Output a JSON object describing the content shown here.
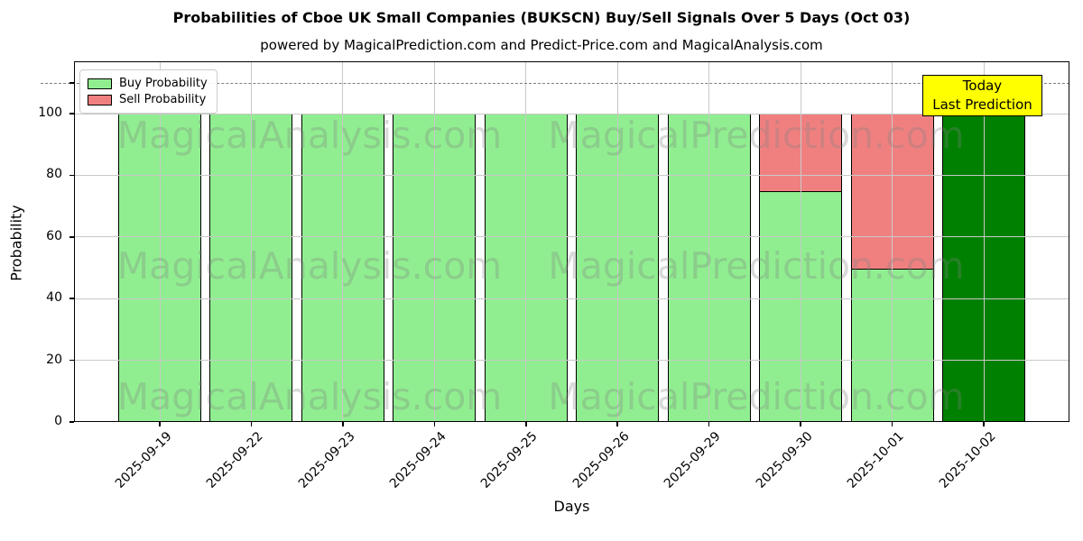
{
  "header": {
    "title": "Probabilities of Cboe UK Small Companies (BUKSCN) Buy/Sell Signals Over 5 Days (Oct 03)",
    "subtitle": "powered by MagicalPrediction.com and Predict-Price.com and MagicalAnalysis.com"
  },
  "legend": {
    "items": [
      {
        "label": "Buy Probability",
        "color": "#90EE90"
      },
      {
        "label": "Sell Probability",
        "color": "#F08080"
      }
    ]
  },
  "annotation": {
    "line1": "Today",
    "line2": "Last Prediction",
    "bg_color": "#FFFF00"
  },
  "watermarks": {
    "left_text": "MagicalAnalysis.com",
    "right_text": "MagicalPrediction.com"
  },
  "axes": {
    "ylabel": "Probability",
    "xlabel": "Days",
    "yticks": [
      0,
      20,
      40,
      60,
      80,
      100
    ]
  },
  "colors": {
    "buy": "#90EE90",
    "sell": "#F08080",
    "today_bar": "#008000",
    "bar_edge": "#000000",
    "grid": "#c9c9c9",
    "dashed_line": "#7f7f7f",
    "annotation_bg": "#FFFF00"
  },
  "chart_data": {
    "type": "bar",
    "stacked": true,
    "title": "Probabilities of Cboe UK Small Companies (BUKSCN) Buy/Sell Signals Over 5 Days (Oct 03)",
    "xlabel": "Days",
    "ylabel": "Probability",
    "categories": [
      "2025-09-19",
      "2025-09-22",
      "2025-09-23",
      "2025-09-24",
      "2025-09-25",
      "2025-09-26",
      "2025-09-29",
      "2025-09-30",
      "2025-10-01",
      "2025-10-02"
    ],
    "series": [
      {
        "name": "Buy Probability",
        "color": "#90EE90",
        "values": [
          100,
          100,
          100,
          100,
          100,
          100,
          100,
          75,
          50,
          100
        ]
      },
      {
        "name": "Sell Probability",
        "color": "#F08080",
        "values": [
          0,
          0,
          0,
          0,
          0,
          0,
          0,
          25,
          50,
          0
        ]
      }
    ],
    "today_index": 9,
    "today_color": "#008000",
    "today_label": "Today Last Prediction",
    "ylim": [
      0,
      117
    ],
    "yticks": [
      0,
      20,
      40,
      60,
      80,
      100
    ],
    "dashed_line_y": 110,
    "grid": true,
    "legend_position": "upper left"
  }
}
